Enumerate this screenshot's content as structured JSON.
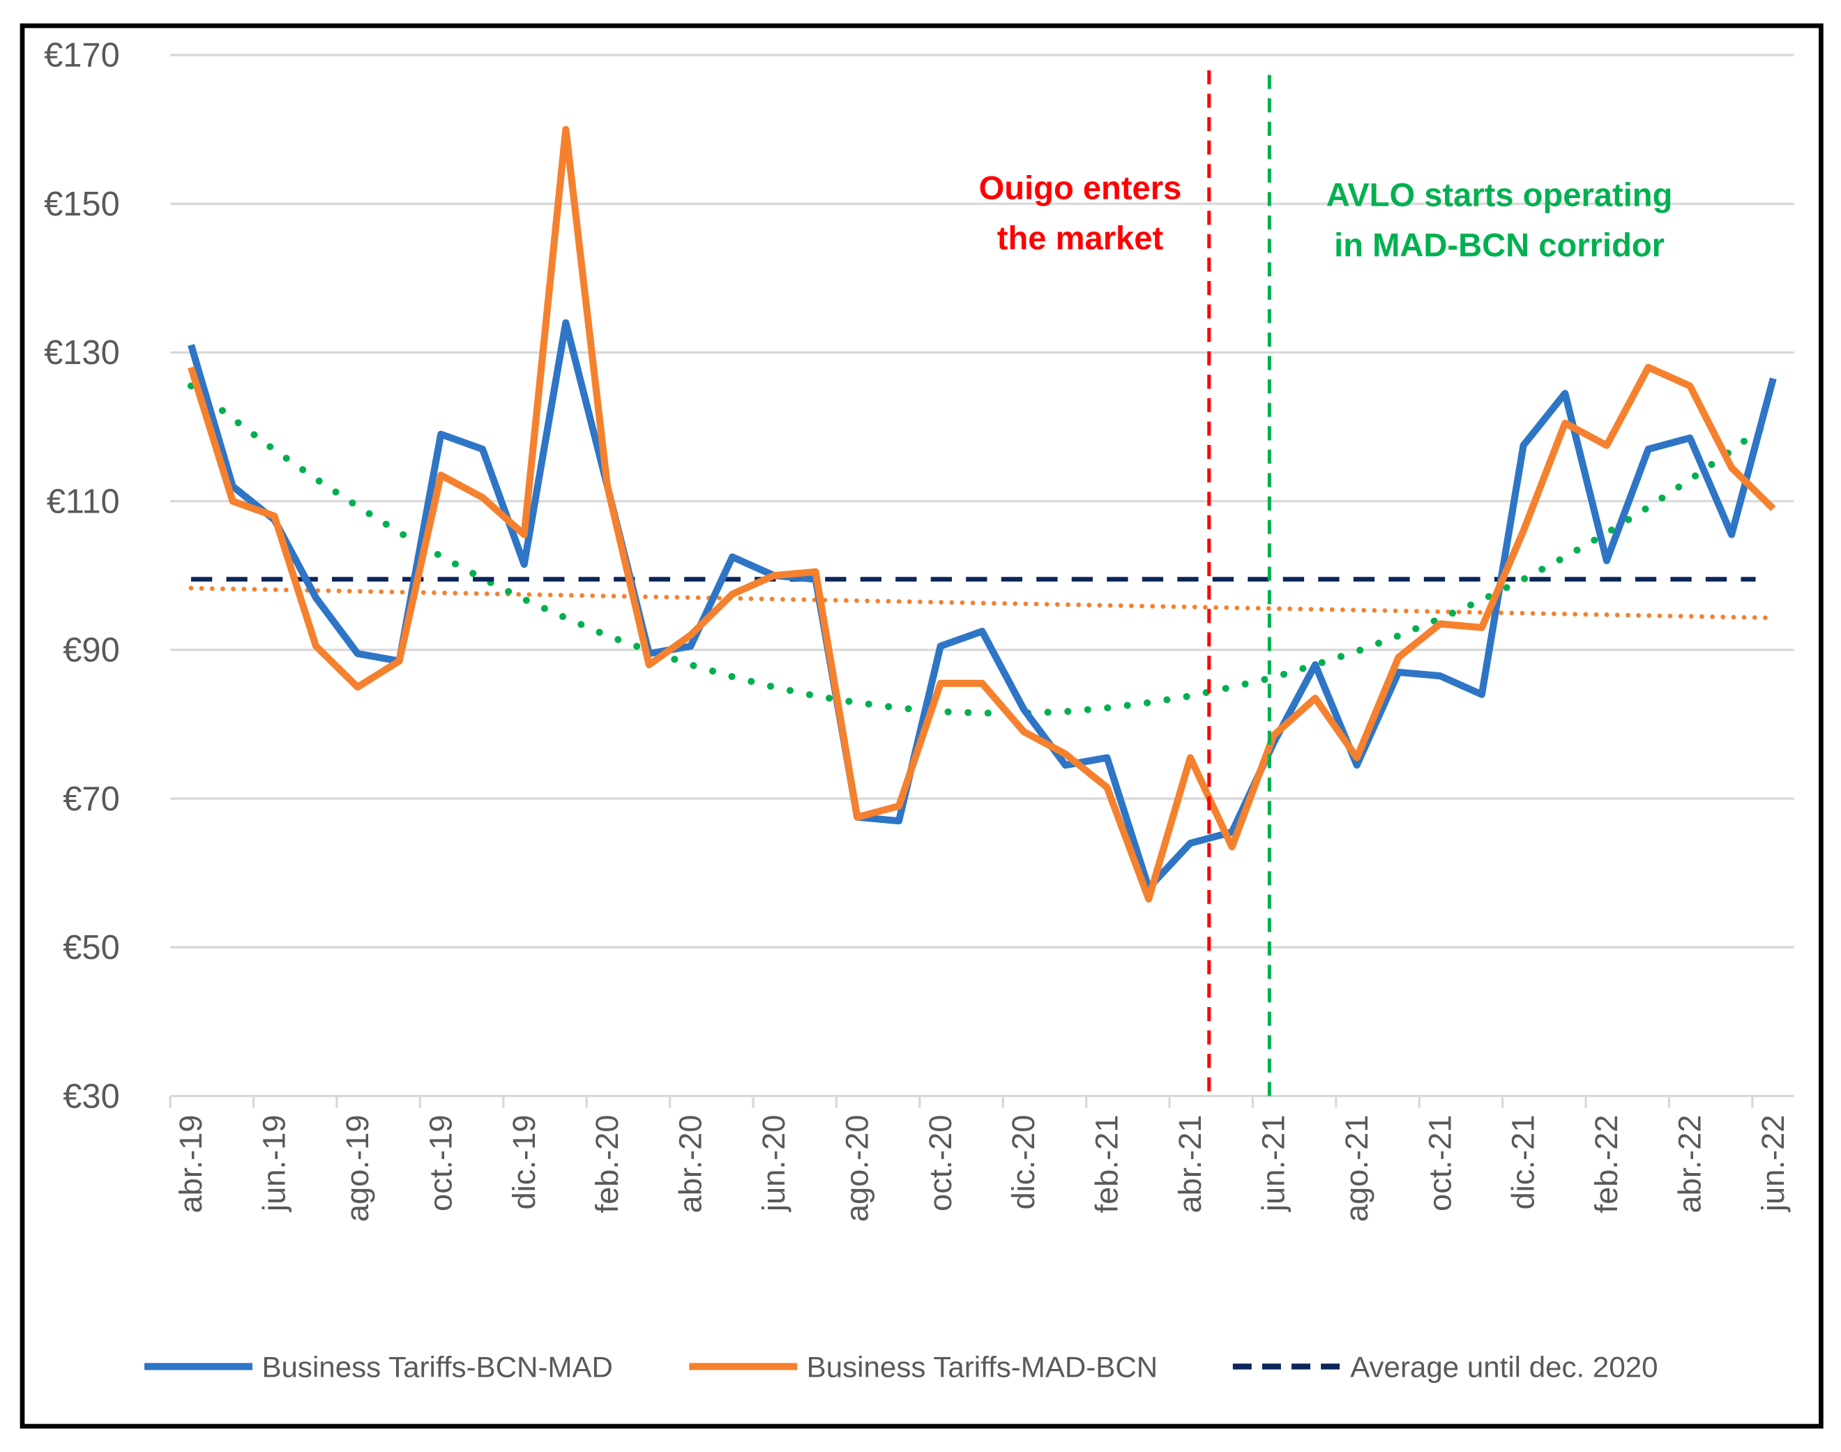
{
  "chart_data": {
    "type": "line",
    "title": "",
    "xlabel": "",
    "ylabel": "",
    "ylim": [
      30,
      170
    ],
    "yticks": [
      30,
      50,
      70,
      90,
      110,
      130,
      150,
      170
    ],
    "ytick_labels": [
      "€30",
      "€50",
      "€70",
      "€90",
      "€110",
      "€130",
      "€150",
      "€170"
    ],
    "x_period": "monthly, abr.-19 to jun.-22",
    "x_tick_labels": [
      "abr.-19",
      "jun.-19",
      "ago.-19",
      "oct.-19",
      "dic.-19",
      "feb.-20",
      "abr.-20",
      "jun.-20",
      "ago.-20",
      "oct.-20",
      "dic.-20",
      "feb.-21",
      "abr.-21",
      "jun.-21",
      "ago.-21",
      "oct.-21",
      "dic.-21",
      "feb.-22",
      "abr.-22",
      "jun.-22"
    ],
    "grid": true,
    "legend_position": "bottom",
    "series": [
      {
        "name": "Business Tariffs-BCN-MAD",
        "color": "#2E75C6",
        "style": "solid",
        "values": [
          131,
          112,
          107.5,
          97,
          89.5,
          88.5,
          119,
          117,
          101.5,
          134,
          112,
          89.5,
          90.5,
          102.5,
          100,
          99.5,
          67.5,
          67,
          90.5,
          92.5,
          82,
          74.5,
          75.5,
          58,
          64,
          65.5,
          77.5,
          88,
          74.5,
          87,
          86.5,
          84,
          117.5,
          124.5,
          102,
          117,
          118.5,
          105.5,
          126.5
        ]
      },
      {
        "name": "Business Tariffs-MAD-BCN",
        "color": "#F5812E",
        "style": "solid",
        "values": [
          128,
          110,
          108,
          90.5,
          85,
          88.5,
          113.5,
          110.5,
          105.5,
          160,
          112,
          88,
          92,
          97.5,
          100,
          100.5,
          67.5,
          69,
          85.5,
          85.5,
          79,
          76,
          71.5,
          56.5,
          75.5,
          63.5,
          78.5,
          83.5,
          75.5,
          89,
          93.5,
          93,
          106,
          120.5,
          117.5,
          128,
          125.5,
          114.5,
          109
        ]
      },
      {
        "name": "Average until dec. 2020",
        "color": "#0B2559",
        "style": "dashed",
        "value": 99.5
      }
    ],
    "trendlines": [
      {
        "of": "Business Tariffs-MAD-BCN",
        "kind": "linear",
        "color": "#F5812E",
        "style": "dotted",
        "start": 98.3,
        "end": 94.3
      },
      {
        "kind": "polynomial",
        "color": "#00B050",
        "style": "dotted",
        "values": [
          125.5,
          121.1,
          116.9,
          113.0,
          109.3,
          105.8,
          102.6,
          99.6,
          96.8,
          94.3,
          91.9,
          89.9,
          88.0,
          86.4,
          85.0,
          83.8,
          82.9,
          82.2,
          81.7,
          81.5,
          81.5,
          81.7,
          82.2,
          82.9,
          83.8,
          85.0,
          86.3,
          88.0,
          89.8,
          91.9,
          94.2,
          96.7,
          99.5,
          102.5,
          105.7,
          109.2,
          112.9,
          116.8,
          121.0
        ]
      }
    ],
    "annotations": [
      {
        "lines": [
          "Ouigo enters",
          "the market"
        ],
        "color": "#FF0000",
        "marker": "vertical dashed line",
        "near": "abr.-21 / may.-21"
      },
      {
        "lines": [
          "AVLO starts operating",
          "in MAD-BCN corridor"
        ],
        "color": "#00B050",
        "marker": "vertical dashed line",
        "near": "jun.-21"
      }
    ]
  }
}
